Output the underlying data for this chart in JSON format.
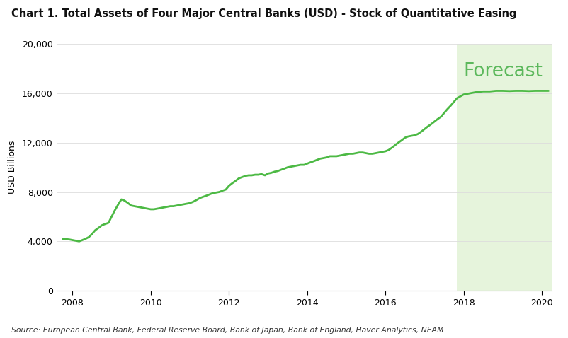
{
  "title": "Chart 1. Total Assets of Four Major Central Banks (USD) - Stock of Quantitative Easing",
  "ylabel": "USD Billions",
  "source": "Source: European Central Bank, Federal Reserve Board, Bank of Japan, Bank of England, Haver Analytics, NEAM",
  "forecast_label": "Forecast",
  "forecast_start": 2017.83,
  "line_color": "#4cb944",
  "forecast_bg_color": "#e6f4dc",
  "forecast_text_color": "#5cb85c",
  "ylim": [
    0,
    20000
  ],
  "xlim": [
    2007.6,
    2020.25
  ],
  "yticks": [
    0,
    4000,
    8000,
    12000,
    16000,
    20000
  ],
  "xticks": [
    2008,
    2010,
    2012,
    2014,
    2016,
    2018,
    2020
  ],
  "x": [
    2007.75,
    2007.83,
    2007.92,
    2008.0,
    2008.08,
    2008.17,
    2008.25,
    2008.33,
    2008.42,
    2008.5,
    2008.58,
    2008.67,
    2008.75,
    2008.83,
    2008.92,
    2009.0,
    2009.08,
    2009.17,
    2009.25,
    2009.33,
    2009.42,
    2009.5,
    2009.58,
    2009.67,
    2009.75,
    2009.83,
    2009.92,
    2010.0,
    2010.08,
    2010.17,
    2010.25,
    2010.33,
    2010.42,
    2010.5,
    2010.58,
    2010.67,
    2010.75,
    2010.83,
    2010.92,
    2011.0,
    2011.08,
    2011.17,
    2011.25,
    2011.33,
    2011.42,
    2011.5,
    2011.58,
    2011.67,
    2011.75,
    2011.83,
    2011.92,
    2012.0,
    2012.08,
    2012.17,
    2012.25,
    2012.33,
    2012.42,
    2012.5,
    2012.58,
    2012.67,
    2012.75,
    2012.83,
    2012.92,
    2013.0,
    2013.08,
    2013.17,
    2013.25,
    2013.33,
    2013.42,
    2013.5,
    2013.58,
    2013.67,
    2013.75,
    2013.83,
    2013.92,
    2014.0,
    2014.08,
    2014.17,
    2014.25,
    2014.33,
    2014.42,
    2014.5,
    2014.58,
    2014.67,
    2014.75,
    2014.83,
    2014.92,
    2015.0,
    2015.08,
    2015.17,
    2015.25,
    2015.33,
    2015.42,
    2015.5,
    2015.58,
    2015.67,
    2015.75,
    2015.83,
    2015.92,
    2016.0,
    2016.08,
    2016.17,
    2016.25,
    2016.33,
    2016.42,
    2016.5,
    2016.58,
    2016.67,
    2016.75,
    2016.83,
    2016.92,
    2017.0,
    2017.08,
    2017.17,
    2017.25,
    2017.33,
    2017.42,
    2017.5,
    2017.58,
    2017.67,
    2017.75,
    2017.83,
    2018.0,
    2018.17,
    2018.33,
    2018.5,
    2018.67,
    2018.83,
    2019.0,
    2019.17,
    2019.33,
    2019.5,
    2019.67,
    2019.83,
    2020.0,
    2020.17
  ],
  "y": [
    4200,
    4180,
    4150,
    4100,
    4050,
    4000,
    4100,
    4200,
    4350,
    4600,
    4900,
    5100,
    5300,
    5400,
    5500,
    6000,
    6500,
    7000,
    7400,
    7300,
    7100,
    6900,
    6850,
    6800,
    6750,
    6700,
    6650,
    6600,
    6600,
    6650,
    6700,
    6750,
    6800,
    6850,
    6850,
    6900,
    6950,
    7000,
    7050,
    7100,
    7200,
    7350,
    7500,
    7600,
    7700,
    7800,
    7900,
    7950,
    8000,
    8100,
    8200,
    8500,
    8700,
    8900,
    9100,
    9200,
    9300,
    9350,
    9350,
    9400,
    9400,
    9450,
    9350,
    9500,
    9550,
    9650,
    9700,
    9800,
    9900,
    10000,
    10050,
    10100,
    10150,
    10200,
    10200,
    10300,
    10400,
    10500,
    10600,
    10700,
    10750,
    10800,
    10900,
    10900,
    10900,
    10950,
    11000,
    11050,
    11100,
    11100,
    11150,
    11200,
    11200,
    11150,
    11100,
    11100,
    11150,
    11200,
    11250,
    11300,
    11400,
    11600,
    11800,
    12000,
    12200,
    12400,
    12500,
    12550,
    12600,
    12700,
    12900,
    13100,
    13300,
    13500,
    13700,
    13900,
    14100,
    14400,
    14700,
    15000,
    15300,
    15600,
    15900,
    16000,
    16100,
    16150,
    16150,
    16200,
    16200,
    16180,
    16200,
    16200,
    16180,
    16200,
    16200,
    16200
  ]
}
